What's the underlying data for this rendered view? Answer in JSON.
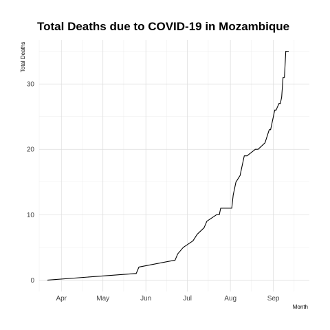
{
  "chart_data": {
    "type": "line",
    "title": "Total Deaths due to COVID-19 in Mozambique",
    "xlabel": "Month",
    "ylabel": "Total Deaths",
    "x_tick_labels": [
      "Apr",
      "May",
      "Jun",
      "Jul",
      "Aug",
      "Sep"
    ],
    "y_ticks": [
      0,
      10,
      20,
      30
    ],
    "ylim": [
      -1.75,
      36.75
    ],
    "xlim": [
      "2020-03-16",
      "2020-09-27"
    ],
    "grid": true,
    "series": [
      {
        "x": [
          "2020-03-22",
          "2020-05-24",
          "2020-05-25",
          "2020-05-27",
          "2020-06-21",
          "2020-06-22",
          "2020-06-24",
          "2020-06-28",
          "2020-07-05",
          "2020-07-08",
          "2020-07-13",
          "2020-07-15",
          "2020-07-22",
          "2020-07-24",
          "2020-07-25",
          "2020-07-26",
          "2020-08-02",
          "2020-08-03",
          "2020-08-04",
          "2020-08-05",
          "2020-08-08",
          "2020-08-09",
          "2020-08-11",
          "2020-08-13",
          "2020-08-19",
          "2020-08-21",
          "2020-08-26",
          "2020-08-29",
          "2020-08-30",
          "2020-09-01",
          "2020-09-02",
          "2020-09-03",
          "2020-09-05",
          "2020-09-06",
          "2020-09-07",
          "2020-09-08",
          "2020-09-09",
          "2020-09-10",
          "2020-09-11",
          "2020-09-12"
        ],
        "y": [
          0,
          1,
          1,
          2,
          3,
          3,
          4,
          5,
          6,
          7,
          8,
          9,
          10,
          10,
          11,
          11,
          11,
          13,
          14,
          15,
          16,
          17,
          19,
          19,
          20,
          20,
          21,
          23,
          23,
          25,
          26,
          26,
          27,
          27,
          28,
          31,
          31,
          35,
          35,
          35
        ]
      }
    ]
  }
}
